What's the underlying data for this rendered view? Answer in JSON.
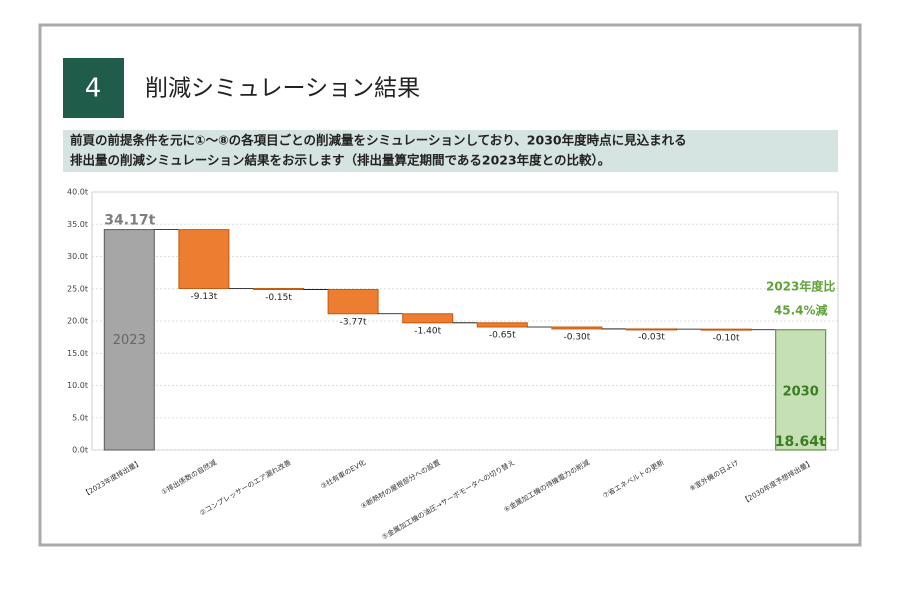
{
  "header": {
    "number": "4",
    "title": "削減シミュレーション結果",
    "description": [
      "前頁の前提条件を元に①～⑧の各項目ごとの削減量をシミュレーションしており、2030年度時点に見込まれる",
      "排出量の削減シミュレーション結果をお示します（排出量算定期間である2023年度との比較）。"
    ]
  },
  "chart_data": {
    "type": "waterfall",
    "categories": [
      "【2023年度排出量】",
      "①排出係数の自然減",
      "②コンプレッサーのエア漏れ改善",
      "③社有車のEV化",
      "④断熱材の屋根部分への設置",
      "⑤金属加工機の油圧→サーボモータへの切り替え",
      "⑥金属加工機の待機電力の削減",
      "⑦省エネベルトの更新",
      "⑧室外機の日よけ",
      "【2030年度予想排出量】"
    ],
    "measure": [
      "absolute",
      "relative",
      "relative",
      "relative",
      "relative",
      "relative",
      "relative",
      "relative",
      "relative",
      "absolute"
    ],
    "values": [
      34.17,
      -9.13,
      -0.15,
      -3.77,
      -1.4,
      -0.65,
      -0.3,
      -0.03,
      -0.1,
      18.64
    ],
    "value_labels": [
      "34.17t",
      "-9.13t",
      "-0.15t",
      "-3.77t",
      "-1.40t",
      "-0.65t",
      "-0.30t",
      "-0.03t",
      "-0.10t",
      "18.64t"
    ],
    "bar_labels": [
      "2023",
      null,
      null,
      null,
      null,
      null,
      null,
      null,
      null,
      "2030"
    ],
    "colors": [
      "#a6a6a6",
      "#ed7d31",
      "#ed7d31",
      "#ed7d31",
      "#ed7d31",
      "#ed7d31",
      "#ed7d31",
      "#ed7d31",
      "#ed7d31",
      "#c5e0b4"
    ],
    "edge_colors": [
      "#595959",
      "#c55a11",
      "#c55a11",
      "#c55a11",
      "#c55a11",
      "#c55a11",
      "#c55a11",
      "#c55a11",
      "#c55a11",
      "#548235"
    ],
    "annotations": [
      "2023年度比",
      "45.4%減"
    ],
    "ylim": [
      0,
      40
    ],
    "yticks": [
      {
        "value": 0,
        "label": "0.0t"
      },
      {
        "value": 5,
        "label": "5.0t"
      },
      {
        "value": 10,
        "label": "10.0t"
      },
      {
        "value": 15,
        "label": "15.0t"
      },
      {
        "value": 20,
        "label": "20.0t"
      },
      {
        "value": 25,
        "label": "25.0t"
      },
      {
        "value": 30,
        "label": "30.0t"
      },
      {
        "value": 35,
        "label": "35.0t"
      },
      {
        "value": 40,
        "label": "40.0t"
      }
    ],
    "grid": true
  }
}
